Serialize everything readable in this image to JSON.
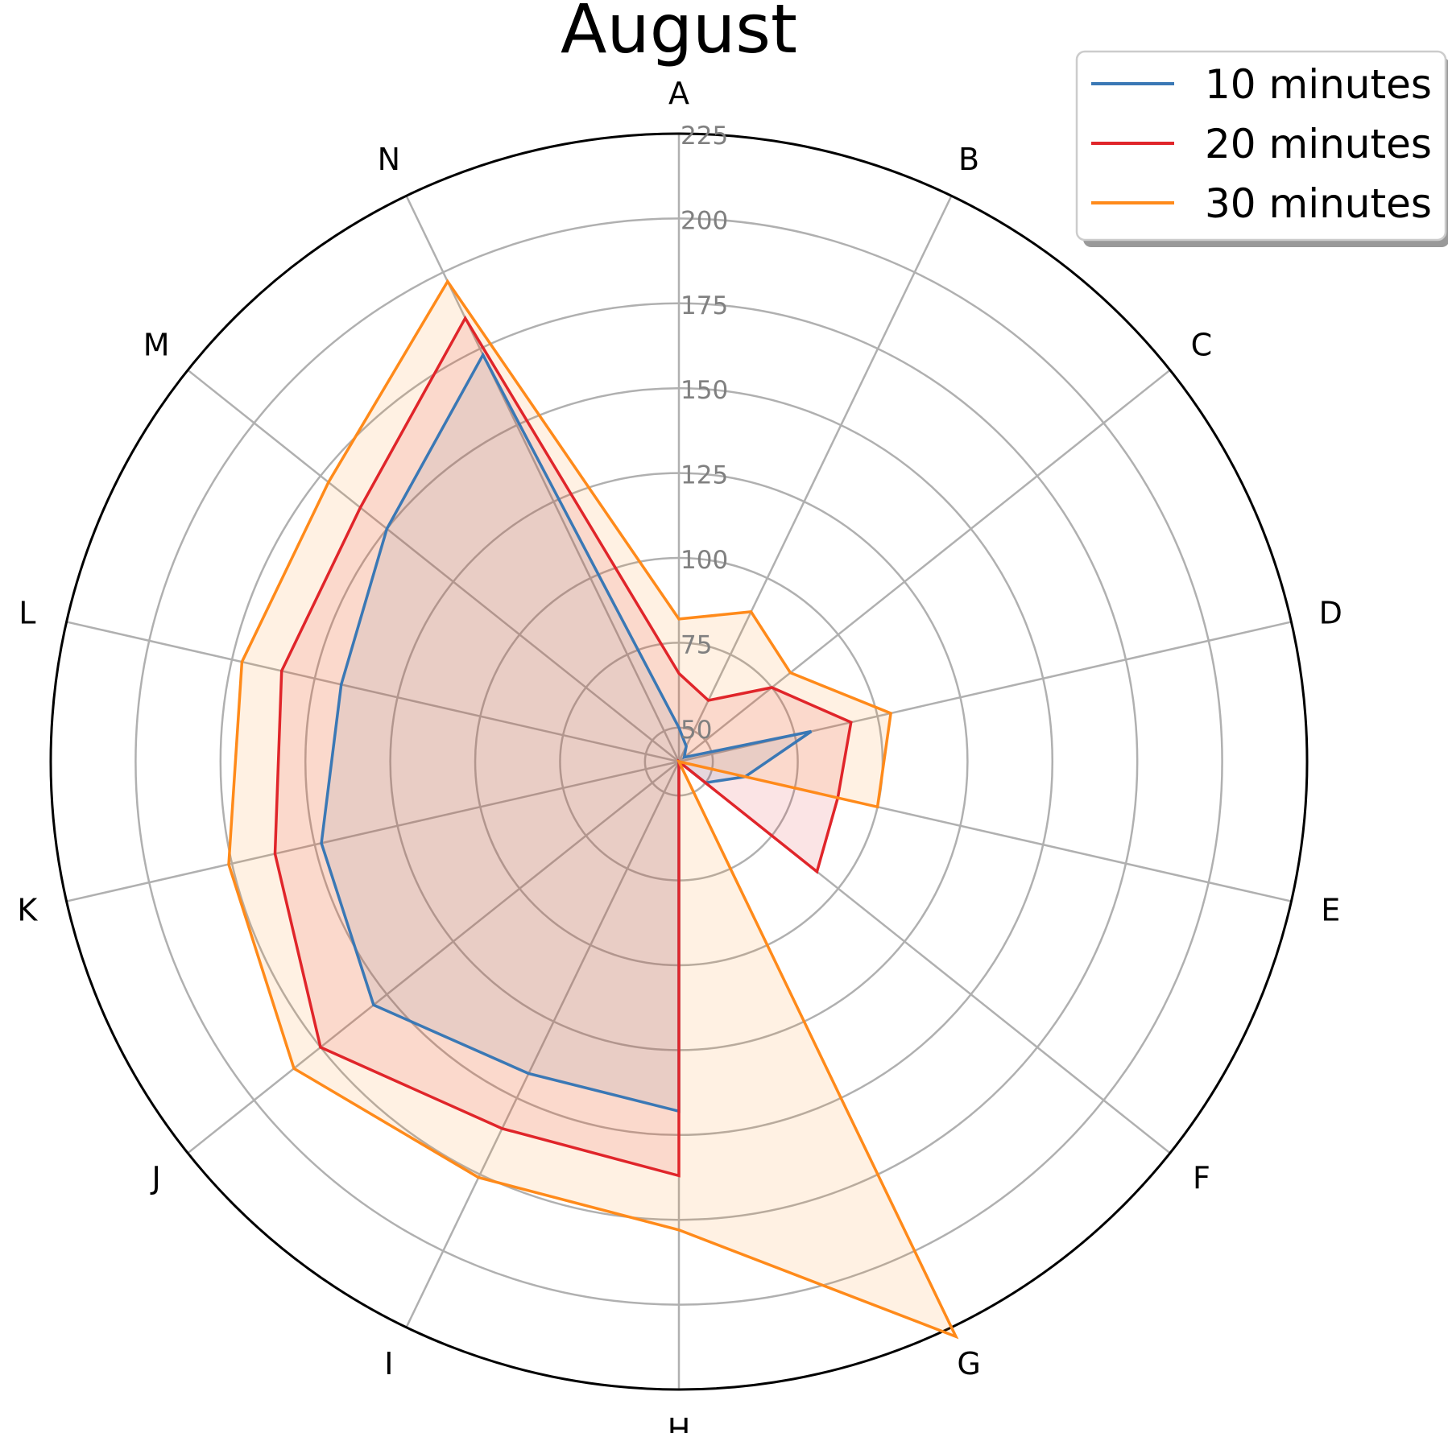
{
  "chart_data": {
    "type": "radar",
    "title": "August",
    "categories": [
      "A",
      "B",
      "C",
      "D",
      "E",
      "F",
      "G",
      "H",
      "I",
      "J",
      "K",
      "L",
      "M",
      "N"
    ],
    "radial_ticks": [
      50,
      75,
      100,
      125,
      150,
      175,
      200,
      225
    ],
    "rlim": [
      40,
      225
    ],
    "grid": true,
    "legend_position": "top-right",
    "series": [
      {
        "name": "10 minutes",
        "color": "#3a78b5",
        "values": [
          50,
          45,
          42,
          80,
          60,
          50,
          40,
          143,
          142,
          155,
          148,
          142,
          150,
          173
        ]
      },
      {
        "name": "20 minutes",
        "color": "#e0252a",
        "values": [
          66,
          60,
          75,
          92,
          88,
          92,
          40,
          162,
          160,
          175,
          162,
          160,
          160,
          185
        ]
      },
      {
        "name": "30 minutes",
        "color": "#ff8a1a",
        "values": [
          82,
          89,
          82,
          104,
          100,
          40,
          228,
          178,
          176,
          185,
          176,
          172,
          172,
          197
        ]
      }
    ]
  }
}
